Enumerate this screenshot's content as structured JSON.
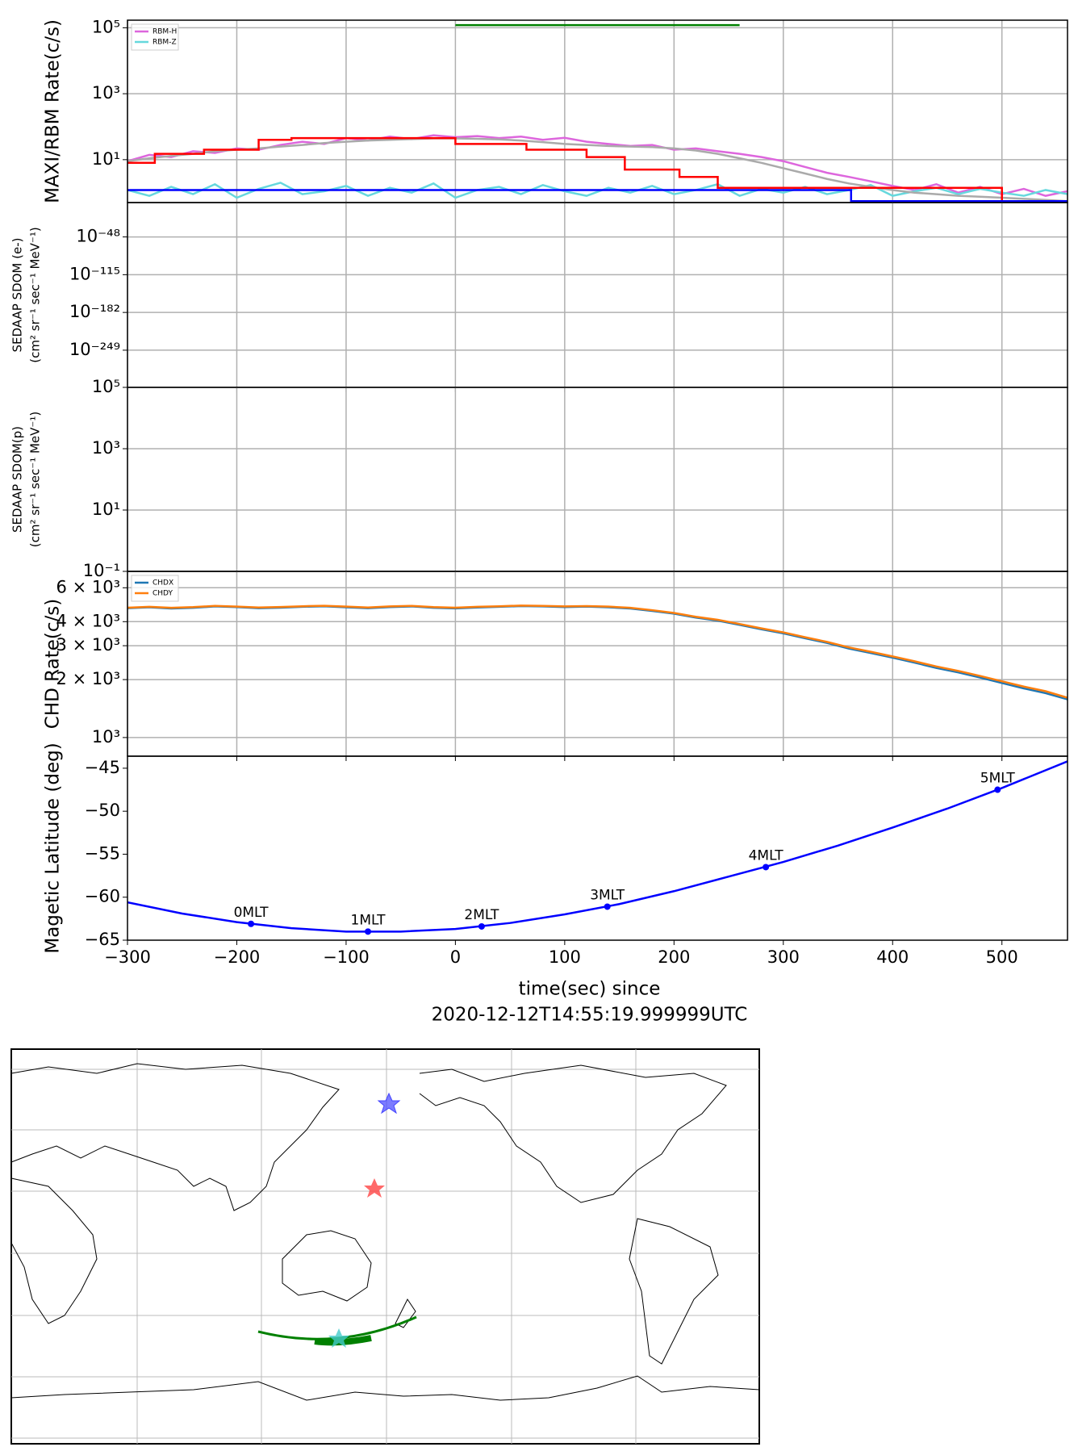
{
  "chart_data": [
    {
      "type": "line",
      "ylabel": [
        "MAXI/RBM Rate(c/s)"
      ],
      "ylog": true,
      "grid": true,
      "legend": "upper left",
      "xlim": [
        -300,
        560
      ],
      "xticks": [
        -300,
        -200,
        -100,
        0,
        100,
        200,
        300,
        400,
        500
      ],
      "ylim": [
        0.5,
        170000
      ],
      "yticks": [
        {
          "value": 10,
          "label": "10¹"
        },
        {
          "value": 1000,
          "label": "10³"
        },
        {
          "value": 100000,
          "label": "10⁵"
        }
      ],
      "x": [
        -300,
        -280,
        -260,
        -240,
        -220,
        -200,
        -180,
        -160,
        -140,
        -120,
        -100,
        -80,
        -60,
        -40,
        -20,
        0,
        20,
        40,
        60,
        80,
        100,
        120,
        140,
        160,
        180,
        200,
        220,
        240,
        260,
        280,
        300,
        320,
        340,
        360,
        380,
        400,
        420,
        440,
        460,
        480,
        500,
        520,
        540,
        560
      ],
      "series": [
        {
          "name": "RBM-H",
          "color": "#dd66dd",
          "values": [
            9,
            14,
            12,
            18,
            16,
            22,
            20,
            28,
            35,
            30,
            45,
            38,
            50,
            42,
            55,
            48,
            52,
            45,
            50,
            40,
            46,
            35,
            30,
            26,
            28,
            20,
            22,
            18,
            15,
            12,
            9,
            6,
            4,
            3,
            2.2,
            1.6,
            1.2,
            1.8,
            1.0,
            1.5,
            0.9,
            1.3,
            0.8,
            1.1
          ]
        },
        {
          "name": "RBM-Z",
          "color": "#66d8dd",
          "values": [
            1.2,
            0.8,
            1.5,
            0.9,
            1.8,
            0.7,
            1.3,
            2.0,
            0.9,
            1.1,
            1.6,
            0.8,
            1.4,
            1.0,
            1.9,
            0.7,
            1.2,
            1.5,
            0.9,
            1.7,
            1.1,
            0.8,
            1.4,
            1.0,
            1.6,
            0.9,
            1.2,
            1.8,
            0.8,
            1.3,
            1.0,
            1.5,
            0.9,
            1.2,
            1.7,
            0.8,
            1.1,
            1.4,
            0.9,
            1.3,
            1.0,
            0.8,
            1.2,
            0.9
          ]
        },
        {
          "color": "#aaaaaa",
          "values": [
            9,
            11,
            13,
            15,
            18,
            20,
            22,
            25,
            28,
            32,
            35,
            38,
            40,
            42,
            44,
            44,
            43,
            41,
            38,
            34,
            30,
            28,
            26,
            25,
            24,
            22,
            19,
            15,
            11,
            8,
            5.5,
            3.8,
            2.6,
            1.9,
            1.5,
            1.2,
            1.0,
            0.9,
            0.8,
            0.75,
            0.7,
            0.65,
            0.6,
            0.55
          ]
        },
        {
          "color": "#ff0000",
          "steps": true,
          "x": [
            -300,
            -275,
            -230,
            -180,
            -150,
            0,
            65,
            120,
            155,
            205,
            240,
            500,
            560
          ],
          "values": [
            8,
            15,
            20,
            40,
            45,
            30,
            20,
            12,
            5,
            3,
            1.4,
            0.55,
            0.55
          ]
        },
        {
          "color": "#0000ff",
          "steps": true,
          "x": [
            -300,
            362,
            560
          ],
          "values": [
            1.2,
            0.55,
            0.55
          ]
        },
        {
          "color": "#008000",
          "x": [
            0,
            260
          ],
          "values": [
            120000,
            120000
          ]
        }
      ]
    },
    {
      "type": "line",
      "ylabel": [
        "SEDAAP SDOM (e-)",
        "(cm² sr⁻¹ sec⁻¹ MeV⁻¹)"
      ],
      "ylog": true,
      "grid": true,
      "xlim": [
        -300,
        560
      ],
      "xticks": [
        -300,
        -200,
        -100,
        0,
        100,
        200,
        300,
        400,
        500
      ],
      "ylim": [
        1e-315,
        10000000000000.0
      ],
      "yticks": [
        {
          "value": 1e-249,
          "label": "10⁻²⁴⁹"
        },
        {
          "value": 1e-182,
          "label": "10⁻¹⁸²"
        },
        {
          "value": 1e-115,
          "label": "10⁻¹¹⁵"
        },
        {
          "value": 1e-48,
          "label": "10⁻⁴⁸"
        }
      ],
      "series": []
    },
    {
      "type": "line",
      "ylabel": [
        "SEDAAP SDOM(p)",
        "(cm² sr⁻¹ sec⁻¹ MeV⁻¹)"
      ],
      "ylog": true,
      "grid": true,
      "xlim": [
        -300,
        560
      ],
      "xticks": [
        -300,
        -200,
        -100,
        0,
        100,
        200,
        300,
        400,
        500
      ],
      "ylim": [
        0.1,
        100000
      ],
      "yticks": [
        {
          "value": 0.1,
          "label": "10⁻¹"
        },
        {
          "value": 10,
          "label": "10¹"
        },
        {
          "value": 1000,
          "label": "10³"
        },
        {
          "value": 100000,
          "label": "10⁵"
        }
      ],
      "series": []
    },
    {
      "type": "line",
      "ylabel": [
        "CHD Rate(c/s)"
      ],
      "ylog": true,
      "grid": true,
      "legend": "upper left",
      "xlim": [
        -300,
        560
      ],
      "xticks": [
        -300,
        -200,
        -100,
        0,
        100,
        200,
        300,
        400,
        500
      ],
      "ylim": [
        800,
        7300
      ],
      "yticks": [
        {
          "value": 1000,
          "label": "10³"
        },
        {
          "value": 2000,
          "label": "2 × 10³"
        },
        {
          "value": 3000,
          "label": "3 × 10³"
        },
        {
          "value": 4000,
          "label": "4 × 10³"
        },
        {
          "value": 6000,
          "label": "6 × 10³"
        }
      ],
      "x": [
        -300,
        -280,
        -260,
        -240,
        -220,
        -200,
        -180,
        -160,
        -140,
        -120,
        -100,
        -80,
        -60,
        -40,
        -20,
        0,
        20,
        40,
        60,
        80,
        100,
        120,
        140,
        160,
        180,
        200,
        220,
        240,
        260,
        280,
        300,
        320,
        340,
        360,
        380,
        400,
        420,
        440,
        460,
        480,
        500,
        520,
        540,
        560
      ],
      "series": [
        {
          "name": "CHDX",
          "color": "#1f77b4",
          "values": [
            4700,
            4750,
            4680,
            4720,
            4800,
            4760,
            4700,
            4730,
            4780,
            4810,
            4750,
            4700,
            4760,
            4800,
            4720,
            4690,
            4740,
            4780,
            4820,
            4800,
            4760,
            4790,
            4750,
            4680,
            4550,
            4400,
            4200,
            4050,
            3850,
            3650,
            3480,
            3280,
            3100,
            2900,
            2750,
            2600,
            2450,
            2300,
            2180,
            2050,
            1920,
            1800,
            1700,
            1580
          ]
        },
        {
          "name": "CHDY",
          "color": "#ff7f0e",
          "values": [
            4730,
            4780,
            4720,
            4760,
            4830,
            4790,
            4740,
            4770,
            4810,
            4840,
            4790,
            4740,
            4800,
            4830,
            4760,
            4730,
            4780,
            4810,
            4850,
            4830,
            4800,
            4820,
            4790,
            4720,
            4590,
            4440,
            4240,
            4090,
            3890,
            3690,
            3520,
            3320,
            3140,
            2940,
            2790,
            2640,
            2490,
            2340,
            2220,
            2090,
            1960,
            1840,
            1740,
            1610
          ]
        }
      ]
    },
    {
      "type": "line",
      "ylabel": [
        "Magetic Latitude  (deg)"
      ],
      "ylog": false,
      "grid": false,
      "xlabel": [
        "time(sec) since",
        "2020-12-12T14:55:19.999999UTC"
      ],
      "xlim": [
        -300,
        560
      ],
      "xticks": [
        {
          "value": -300,
          "label": "−300"
        },
        {
          "value": -200,
          "label": "−200"
        },
        {
          "value": -100,
          "label": "−100"
        },
        0,
        100,
        200,
        300,
        400,
        500
      ],
      "ylim": [
        -65,
        -43.6
      ],
      "yticks": [
        {
          "value": -65,
          "label": "−65"
        },
        {
          "value": -60,
          "label": "−60"
        },
        {
          "value": -55,
          "label": "−55"
        },
        {
          "value": -50,
          "label": "−50"
        },
        {
          "value": -45,
          "label": "−45"
        }
      ],
      "series": [
        {
          "color": "#0000ff",
          "x": [
            -300,
            -250,
            -200,
            -150,
            -100,
            -50,
            0,
            50,
            100,
            150,
            200,
            250,
            300,
            350,
            400,
            450,
            500,
            560
          ],
          "values": [
            -60.6,
            -61.9,
            -62.9,
            -63.6,
            -64.0,
            -64.0,
            -63.7,
            -63.0,
            -62.0,
            -60.8,
            -59.3,
            -57.6,
            -55.9,
            -54.0,
            -51.9,
            -49.7,
            -47.3,
            -44.2
          ]
        },
        {
          "color": "#0000ff",
          "marker": "o",
          "x": [
            -187,
            -80,
            24,
            139,
            284,
            496
          ],
          "values": [
            -63.1,
            -64.0,
            -63.4,
            -61.1,
            -56.5,
            -47.5
          ],
          "labels": [
            "0MLT",
            "1MLT",
            "2MLT",
            "3MLT",
            "4MLT",
            "5MLT"
          ]
        }
      ]
    }
  ]
}
